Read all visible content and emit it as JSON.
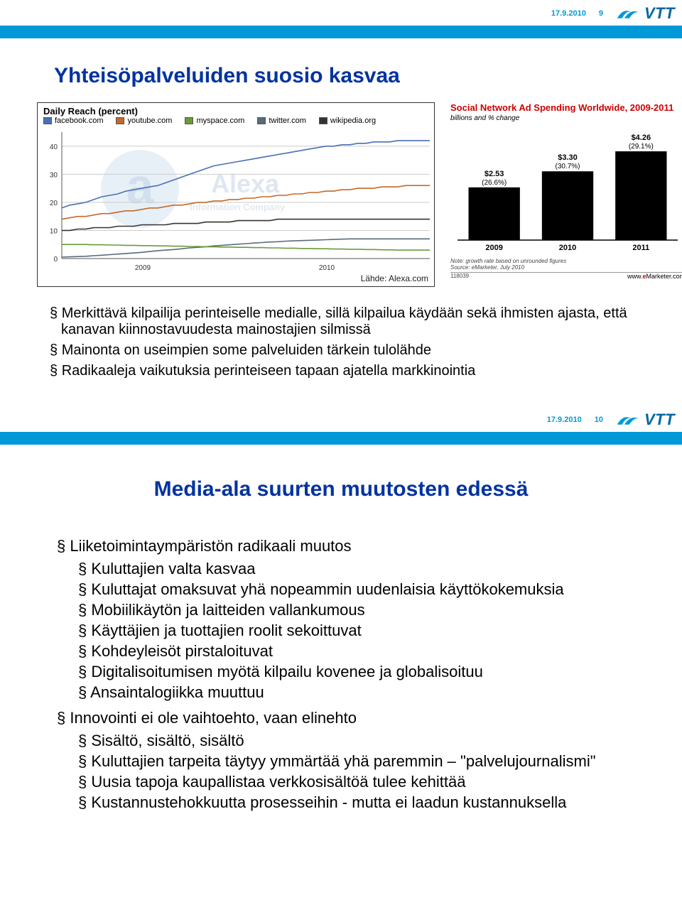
{
  "header": {
    "date": "17.9.2010",
    "logo_text": "VTT",
    "logo_color": "#0066a4",
    "swoosh_color": "#0099d8",
    "bar_color": "#0099d8"
  },
  "slide1": {
    "page_num": "9",
    "title": "Yhteisöpalveluiden suosio kasvaa",
    "line_chart": {
      "type": "line",
      "title": "Daily Reach (percent)",
      "legend": [
        {
          "label": "facebook.com",
          "color": "#4a6fb5"
        },
        {
          "label": "youtube.com",
          "color": "#c26a2a"
        },
        {
          "label": "myspace.com",
          "color": "#6a9a3a"
        },
        {
          "label": "twitter.com",
          "color": "#5a6a7a"
        },
        {
          "label": "wikipedia.org",
          "color": "#333333"
        }
      ],
      "ylim": [
        0,
        45
      ],
      "yticks": [
        0,
        10,
        20,
        30,
        40
      ],
      "x_labels": [
        "2009",
        "2010"
      ],
      "background_color": "#ffffff",
      "grid_color": "#cccccc",
      "watermark": {
        "letter": "a",
        "text1": "Alexa",
        "text2": "Information Company"
      },
      "series": {
        "facebook": [
          18,
          19,
          19.5,
          20,
          21,
          22,
          22.5,
          23,
          24,
          24.5,
          25,
          25.5,
          26,
          27,
          28,
          29,
          30,
          31,
          32,
          33,
          33.5,
          34,
          34.5,
          35,
          35.5,
          36,
          36.5,
          37,
          37.5,
          38,
          38.5,
          39,
          39.5,
          40,
          40,
          40.5,
          40.5,
          41,
          41,
          41.5,
          41.5,
          41.5,
          42,
          42,
          42,
          42,
          42
        ],
        "youtube": [
          14,
          14.5,
          15,
          15,
          15.5,
          16,
          16,
          16.5,
          17,
          17,
          17.5,
          18,
          18,
          18.5,
          19,
          19,
          19.5,
          20,
          20,
          20.5,
          20.5,
          21,
          21,
          21.5,
          21.5,
          22,
          22,
          22.5,
          22.5,
          23,
          23,
          23.5,
          23.5,
          24,
          24,
          24.5,
          24.5,
          25,
          25,
          25,
          25.5,
          25.5,
          25.5,
          26,
          26,
          26,
          26
        ],
        "wikipedia": [
          10,
          10,
          10.5,
          10.5,
          11,
          11,
          11,
          11.5,
          11.5,
          11.5,
          12,
          12,
          12,
          12,
          12.5,
          12.5,
          12.5,
          12.5,
          13,
          13,
          13,
          13,
          13.5,
          13.5,
          13.5,
          13.5,
          13.5,
          14,
          14,
          14,
          14,
          14,
          14,
          14,
          14,
          14,
          14,
          14,
          14,
          14,
          14,
          14,
          14,
          14,
          14,
          14,
          14
        ],
        "twitter": [
          0.5,
          0.6,
          0.7,
          0.8,
          1,
          1.2,
          1.4,
          1.6,
          1.8,
          2,
          2.2,
          2.5,
          2.8,
          3,
          3.2,
          3.5,
          3.8,
          4,
          4.2,
          4.5,
          4.7,
          4.9,
          5.1,
          5.3,
          5.5,
          5.7,
          5.9,
          6,
          6.2,
          6.3,
          6.4,
          6.5,
          6.6,
          6.7,
          6.8,
          6.9,
          7,
          7,
          7,
          7,
          7,
          7,
          7,
          7,
          7,
          7,
          7
        ],
        "myspace": [
          5,
          5,
          5,
          5,
          4.9,
          4.9,
          4.8,
          4.8,
          4.7,
          4.7,
          4.6,
          4.6,
          4.5,
          4.5,
          4.4,
          4.4,
          4.3,
          4.3,
          4.2,
          4.2,
          4.1,
          4.1,
          4,
          4,
          3.9,
          3.9,
          3.8,
          3.8,
          3.7,
          3.7,
          3.6,
          3.6,
          3.5,
          3.5,
          3.4,
          3.4,
          3.3,
          3.3,
          3.2,
          3.2,
          3.1,
          3.1,
          3,
          3,
          3,
          3,
          3
        ]
      },
      "source_label": "Lähde: Alexa.com"
    },
    "bar_chart": {
      "type": "bar",
      "title": "Social Network Ad Spending Worldwide, 2009-2011",
      "subtitle": "billions and % change",
      "categories": [
        "2009",
        "2010",
        "2011"
      ],
      "values": [
        2.53,
        3.3,
        4.26
      ],
      "pct": [
        "(26.6%)",
        "(30.7%)",
        "(29.1%)"
      ],
      "value_labels": [
        "$2.53",
        "$3.30",
        "$4.26"
      ],
      "bar_color": "#000000",
      "ylim": [
        0,
        4.5
      ],
      "note": "Note: growth rate based on unrounded figures",
      "source": "Source: eMarketer, July 2010",
      "id": "118039",
      "brand": "www.eMarketer.com",
      "brand_highlight": "e"
    },
    "bullets": [
      "Merkittävä kilpailija perinteiselle medialle, sillä kilpailua käydään sekä ihmisten ajasta, että kanavan kiinnostavuudesta mainostajien silmissä",
      "Mainonta on useimpien some palveluiden tärkein tulolähde",
      "Radikaaleja vaikutuksia perinteiseen tapaan ajatella markkinointia"
    ]
  },
  "slide2": {
    "page_num": "10",
    "title": "Media-ala suurten muutosten edessä",
    "bullets": [
      {
        "level": 1,
        "text": "Liiketoimintaympäristön radikaali muutos"
      },
      {
        "level": 2,
        "text": "Kuluttajien valta kasvaa"
      },
      {
        "level": 2,
        "text": "Kuluttajat omaksuvat yhä nopeammin uudenlaisia käyttökokemuksia"
      },
      {
        "level": 2,
        "text": "Mobiilikäytön ja laitteiden vallankumous"
      },
      {
        "level": 2,
        "text": "Käyttäjien ja tuottajien roolit sekoittuvat"
      },
      {
        "level": 2,
        "text": "Kohdeyleisöt pirstaloituvat"
      },
      {
        "level": 2,
        "text": "Digitalisoitumisen myötä kilpailu kovenee ja globalisoituu"
      },
      {
        "level": 2,
        "text": "Ansaintalogiikka muuttuu"
      },
      {
        "level": 1,
        "text": "Innovointi ei ole vaihtoehto, vaan elinehto"
      },
      {
        "level": 2,
        "text": "Sisältö, sisältö, sisältö"
      },
      {
        "level": 2,
        "text": "Kuluttajien tarpeita täytyy ymmärtää yhä paremmin – \"palvelujournalismi\""
      },
      {
        "level": 2,
        "text": "Uusia tapoja kaupallistaa verkkosisältöä tulee kehittää"
      },
      {
        "level": 2,
        "text": "Kustannustehokkuutta prosesseihin - mutta ei laadun kustannuksella"
      }
    ]
  }
}
